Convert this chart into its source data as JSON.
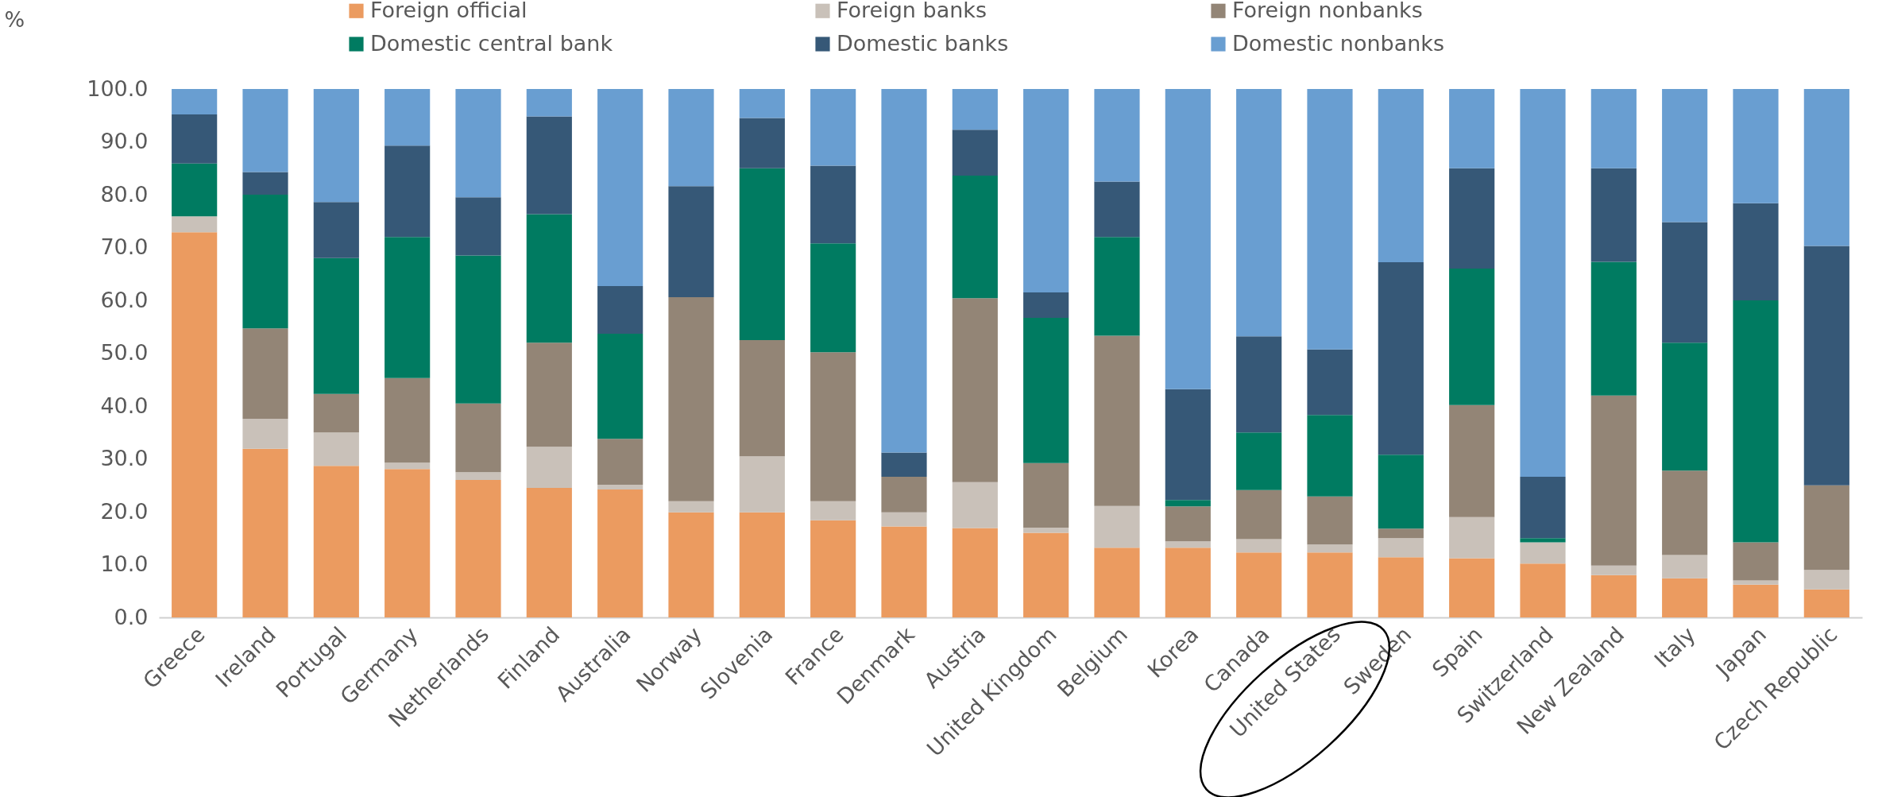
{
  "chart_data": {
    "type": "bar",
    "stacked": true,
    "ylabel": "%",
    "categories": [
      "Greece",
      "Ireland",
      "Portugal",
      "Germany",
      "Netherlands",
      "Finland",
      "Australia",
      "Norway",
      "Slovenia",
      "France",
      "Denmark",
      "Austria",
      "United Kingdom",
      "Belgium",
      "Korea",
      "Canada",
      "United States",
      "Sweden",
      "Spain",
      "Switzerland",
      "New Zealand",
      "Italy",
      "Japan",
      "Czech Republic"
    ],
    "series": [
      {
        "name": "Foreign official",
        "color": "#eb9b60",
        "values": [
          72.9,
          31.9,
          28.7,
          28.1,
          26.0,
          24.5,
          24.2,
          19.9,
          19.9,
          18.4,
          17.2,
          16.9,
          16.0,
          13.2,
          13.2,
          12.3,
          12.3,
          11.4,
          11.2,
          10.2,
          8.0,
          7.4,
          6.2,
          5.3
        ]
      },
      {
        "name": "Foreign banks",
        "color": "#c9c1b9",
        "values": [
          3.0,
          5.7,
          6.3,
          1.2,
          1.5,
          7.8,
          0.9,
          2.1,
          10.6,
          3.6,
          2.7,
          8.7,
          1.0,
          7.9,
          1.2,
          2.5,
          1.5,
          3.6,
          7.8,
          4.0,
          1.8,
          4.4,
          0.8,
          3.7
        ]
      },
      {
        "name": "Foreign nonbanks",
        "color": "#938576",
        "values": [
          0,
          17.1,
          7.3,
          16.0,
          13.0,
          19.7,
          8.7,
          38.6,
          22.0,
          28.2,
          6.7,
          34.8,
          12.2,
          32.2,
          6.6,
          9.3,
          9.1,
          1.8,
          21.2,
          0,
          32.2,
          16.0,
          7.2,
          16.0
        ]
      },
      {
        "name": "Domestic central bank",
        "color": "#007b61",
        "values": [
          10.0,
          25.3,
          25.7,
          26.7,
          28.0,
          24.3,
          19.9,
          0,
          32.5,
          20.6,
          0,
          23.2,
          27.5,
          18.7,
          1.2,
          10.9,
          15.4,
          14.0,
          25.8,
          0.8,
          25.3,
          24.2,
          45.8,
          0
        ]
      },
      {
        "name": "Domestic banks",
        "color": "#365877",
        "values": [
          9.3,
          4.3,
          10.6,
          17.3,
          11.0,
          18.5,
          9.0,
          21.0,
          9.5,
          14.7,
          4.6,
          8.7,
          4.8,
          10.5,
          21.0,
          18.2,
          12.4,
          36.4,
          19.0,
          11.6,
          17.7,
          22.8,
          18.4,
          45.3
        ]
      },
      {
        "name": "Domestic nonbanks",
        "color": "#699ed1",
        "values": [
          4.8,
          15.7,
          21.4,
          10.7,
          20.5,
          5.2,
          37.3,
          18.4,
          5.5,
          14.5,
          68.8,
          7.7,
          38.5,
          17.5,
          56.8,
          46.8,
          49.3,
          32.8,
          15.0,
          73.4,
          15.0,
          25.2,
          21.6,
          29.7
        ]
      }
    ],
    "ylim": [
      0,
      100
    ],
    "yticks": [
      {
        "value": 0,
        "label": "0.0"
      },
      {
        "value": 10,
        "label": "10.0"
      },
      {
        "value": 20,
        "label": "20.0"
      },
      {
        "value": 30,
        "label": "30.0"
      },
      {
        "value": 40,
        "label": "40.0"
      },
      {
        "value": 50,
        "label": "50.0"
      },
      {
        "value": 60,
        "label": "60.0"
      },
      {
        "value": 70,
        "label": "70.0"
      },
      {
        "value": 80,
        "label": "80.0"
      },
      {
        "value": 90,
        "label": "90.0"
      },
      {
        "value": 100,
        "label": "100.0"
      }
    ],
    "legend": "top",
    "grid": false
  }
}
